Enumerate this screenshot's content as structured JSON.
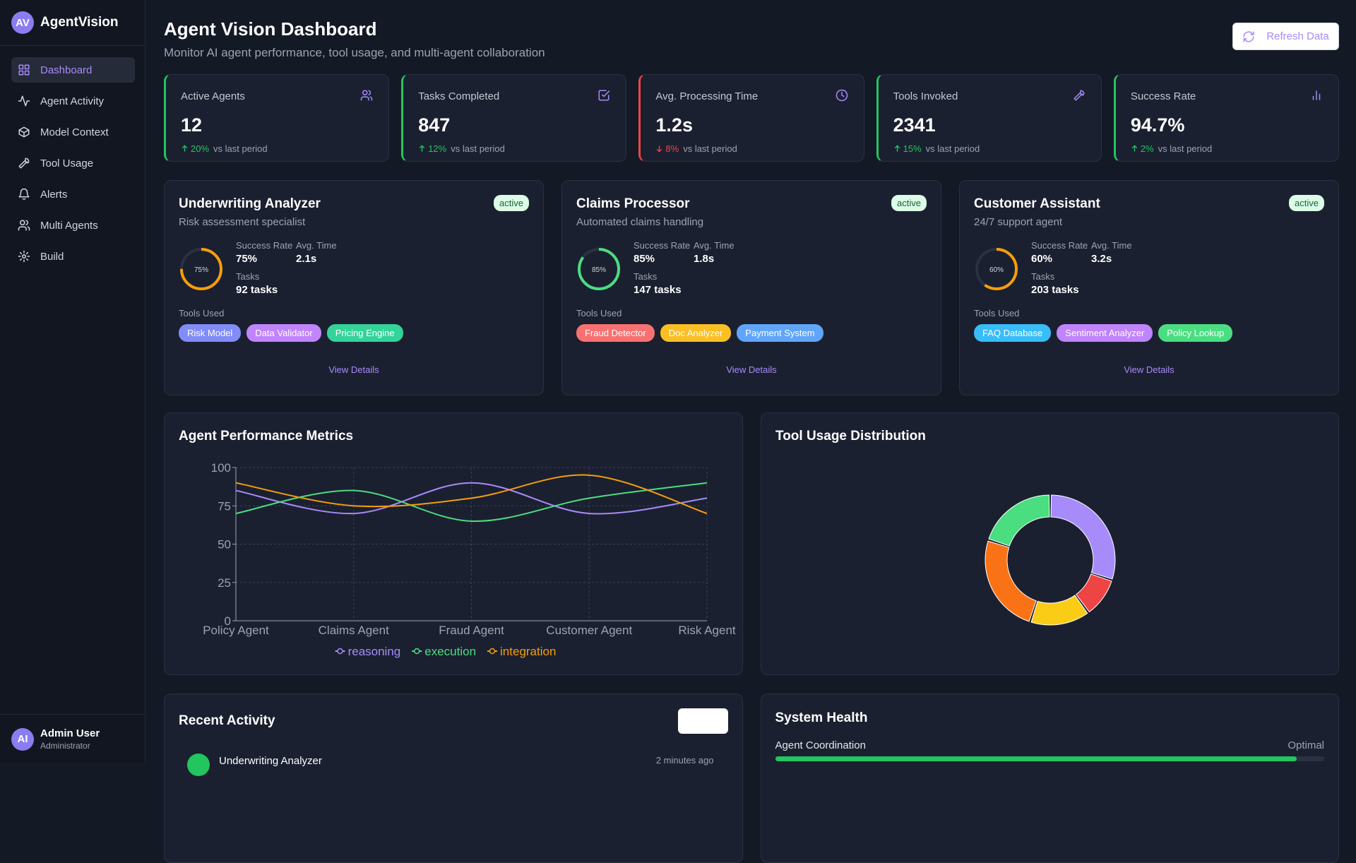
{
  "sidebar": {
    "logo": "AV",
    "brand": "AgentVision",
    "nav": [
      "Dashboard",
      "Agent Activity",
      "Model Context",
      "Tool Usage",
      "Alerts",
      "Multi Agents",
      "Build"
    ],
    "active_nav": 0,
    "user": {
      "avatar": "AI",
      "name": "Admin User",
      "role": "Administrator"
    }
  },
  "header": {
    "title": "Agent Vision Dashboard",
    "subtitle": "Monitor AI agent performance, tool usage, and multi-agent collaboration",
    "button": "Refresh Data"
  },
  "stats": [
    {
      "label": "Active Agents",
      "value": "12",
      "change": "20%",
      "trend": "up",
      "note": "vs last period"
    },
    {
      "label": "Tasks Completed",
      "value": "847",
      "change": "12%",
      "trend": "up",
      "note": "vs last period"
    },
    {
      "label": "Avg. Processing Time",
      "value": "1.2s",
      "change": "8%",
      "trend": "down",
      "note": "vs last period"
    },
    {
      "label": "Tools Invoked",
      "value": "2341",
      "change": "15%",
      "trend": "up",
      "note": "vs last period"
    },
    {
      "label": "Success Rate",
      "value": "94.7%",
      "change": "2%",
      "trend": "up",
      "note": "vs last period"
    }
  ],
  "agents": [
    {
      "name": "Underwriting Analyzer",
      "description": "Risk assessment specialist",
      "status": "active",
      "success": {
        "value": 75,
        "label": "75%"
      },
      "ring_color": "#f59e0b",
      "success_label": "Success Rate",
      "avg_time_label": "Avg. Time",
      "avg_time": "2.1s",
      "tasks_label": "Tasks",
      "tasks": "92 tasks",
      "tools_label": "Tools Used",
      "tools": [
        {
          "name": "Risk Model",
          "color": "#818cf8"
        },
        {
          "name": "Data Validator",
          "color": "#c084fc"
        },
        {
          "name": "Pricing Engine",
          "color": "#34d399"
        }
      ],
      "link": "View Details"
    },
    {
      "name": "Claims Processor",
      "description": "Automated claims handling",
      "status": "active",
      "success": {
        "value": 85,
        "label": "85%"
      },
      "ring_color": "#4ade80",
      "success_label": "Success Rate",
      "avg_time_label": "Avg. Time",
      "avg_time": "1.8s",
      "tasks_label": "Tasks",
      "tasks": "147 tasks",
      "tools_label": "Tools Used",
      "tools": [
        {
          "name": "Fraud Detector",
          "color": "#f87171"
        },
        {
          "name": "Doc Analyzer",
          "color": "#fbbf24"
        },
        {
          "name": "Payment System",
          "color": "#60a5fa"
        }
      ],
      "link": "View Details"
    },
    {
      "name": "Customer Assistant",
      "description": "24/7 support agent",
      "status": "active",
      "success": {
        "value": 60,
        "label": "60%"
      },
      "ring_color": "#f59e0b",
      "success_label": "Success Rate",
      "avg_time_label": "Avg. Time",
      "avg_time": "3.2s",
      "tasks_label": "Tasks",
      "tasks": "203 tasks",
      "tools_label": "Tools Used",
      "tools": [
        {
          "name": "FAQ Database",
          "color": "#38bdf8"
        },
        {
          "name": "Sentiment Analyzer",
          "color": "#c084fc"
        },
        {
          "name": "Policy Lookup",
          "color": "#4ade80"
        }
      ],
      "link": "View Details"
    }
  ],
  "chart_data": [
    {
      "type": "line",
      "title": "Agent Performance Metrics",
      "categories": [
        "Policy Agent",
        "Claims Agent",
        "Fraud Agent",
        "Customer Agent",
        "Risk Agent"
      ],
      "series": [
        {
          "name": "reasoning",
          "color": "#a78bfa",
          "values": [
            85,
            70,
            90,
            70,
            80
          ]
        },
        {
          "name": "execution",
          "color": "#4ade80",
          "values": [
            70,
            85,
            65,
            80,
            90
          ]
        },
        {
          "name": "integration",
          "color": "#f59e0b",
          "values": [
            90,
            75,
            80,
            95,
            70
          ]
        }
      ],
      "ylim": [
        0,
        100
      ],
      "yticks": [
        0,
        25,
        50,
        75,
        100
      ],
      "grid": true
    },
    {
      "type": "donut",
      "title": "Tool Usage Distribution",
      "values": [
        30,
        10,
        15,
        25,
        20
      ],
      "colors": [
        "#a78bfa",
        "#ef4444",
        "#facc15",
        "#f97316",
        "#4ade80"
      ]
    }
  ],
  "recent_activity": {
    "title": "Recent Activity",
    "items": [
      {
        "name": "Underwriting Analyzer",
        "time": "2 minutes ago"
      }
    ]
  },
  "system_health": {
    "title": "System Health",
    "items": [
      {
        "label": "Agent Coordination",
        "status": "Optimal",
        "value": 95
      }
    ]
  }
}
